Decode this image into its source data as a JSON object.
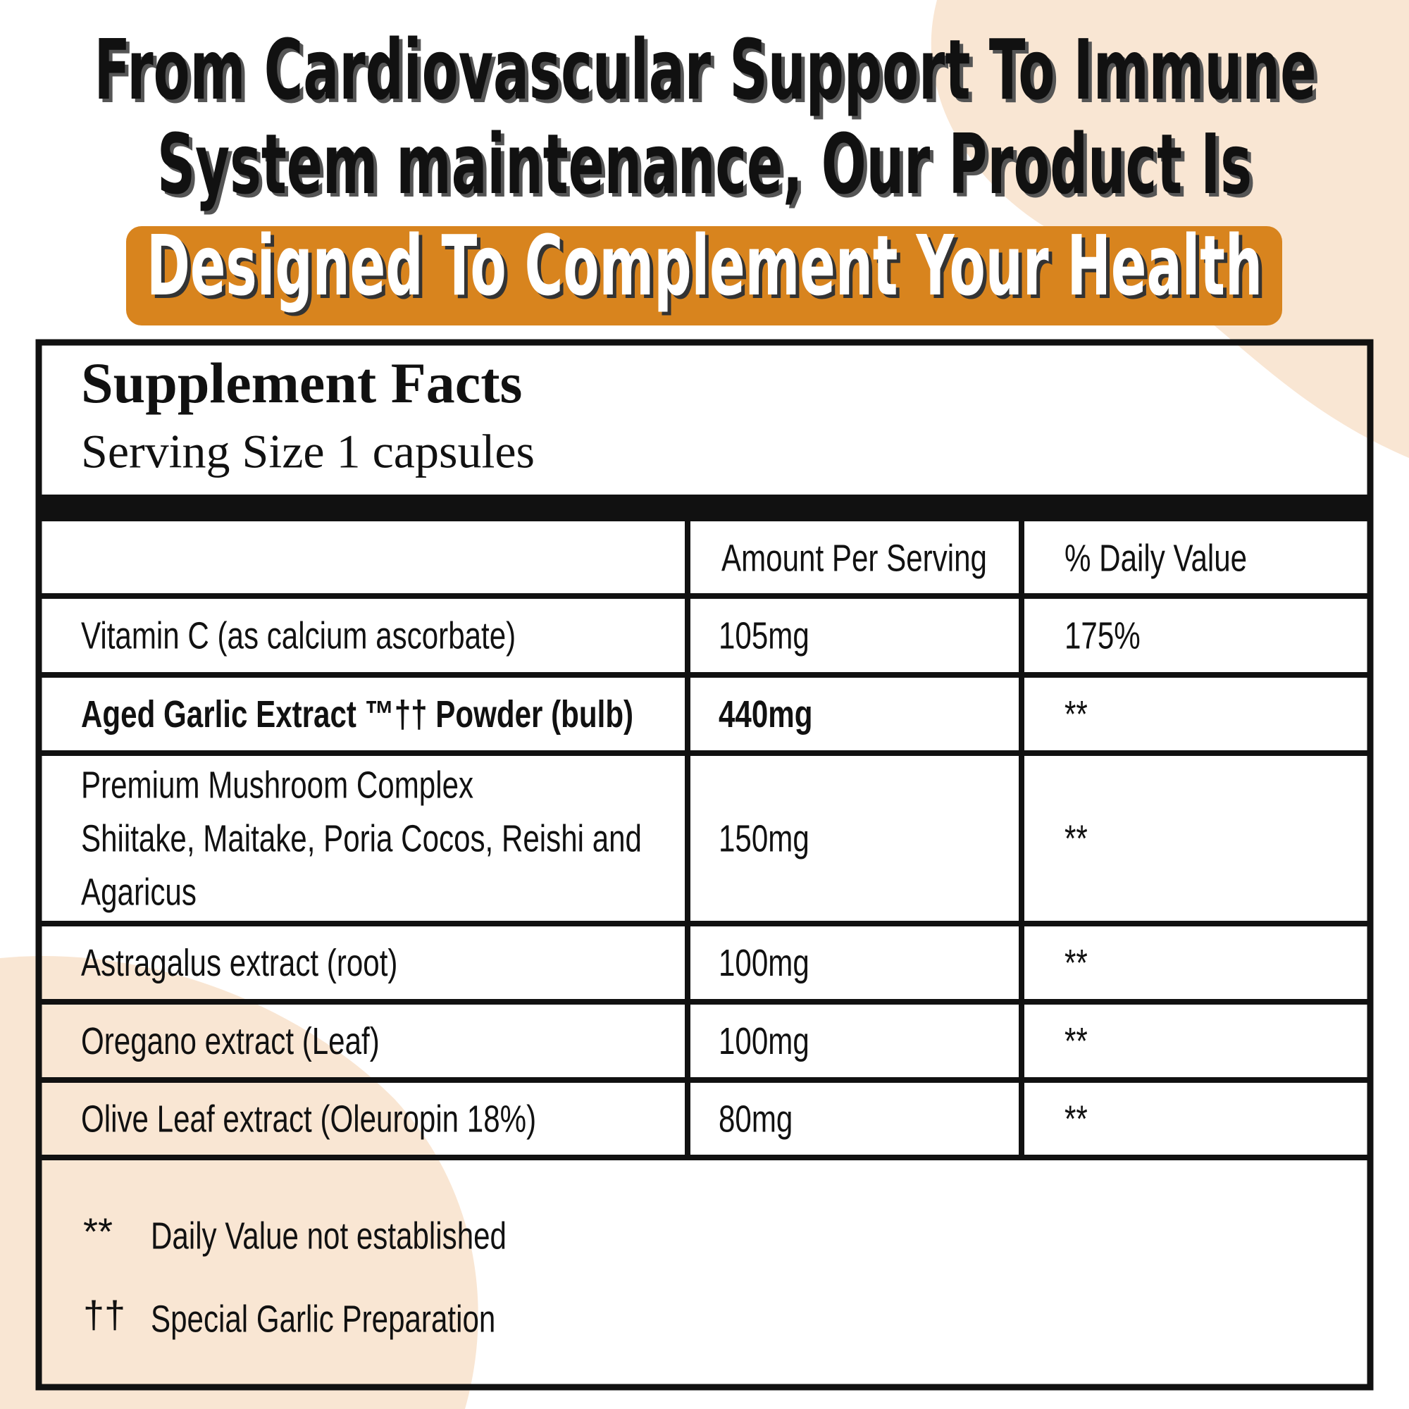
{
  "header": {
    "lines": [
      "From Cardiovascular Support To Immune",
      "System maintenance, Our Product Is"
    ],
    "highlight": "Designed To Complement Your Health"
  },
  "facts": {
    "title": "Supplement Facts",
    "serving": "Serving Size 1 capsules",
    "columns": [
      "Amount Per Serving",
      "% Daily Value"
    ],
    "rows": [
      {
        "name": [
          "Vitamin C (as calcium ascorbate)"
        ],
        "amount": "105mg",
        "dv": "175%"
      },
      {
        "name": [
          "Aged Garlic Extract ™††  Powder (bulb)"
        ],
        "amount": "440mg",
        "dv": "**"
      },
      {
        "name": [
          "Premium Mushroom Complex",
          "Shiitake, Maitake, Poria Cocos, Reishi and",
          "Agaricus"
        ],
        "amount": "150mg",
        "dv": "**"
      },
      {
        "name": [
          "Astragalus extract (root)"
        ],
        "amount": "100mg",
        "dv": "**"
      },
      {
        "name": [
          "Oregano extract (Leaf)"
        ],
        "amount": "100mg",
        "dv": "**"
      },
      {
        "name": [
          "Olive Leaf extract (Oleuropin 18%)"
        ],
        "amount": "80mg",
        "dv": "**"
      }
    ],
    "footnotes": [
      {
        "mark": "**",
        "text": "Daily Value not established"
      },
      {
        "mark": "††",
        "text": "Special Garlic Preparation"
      }
    ]
  }
}
